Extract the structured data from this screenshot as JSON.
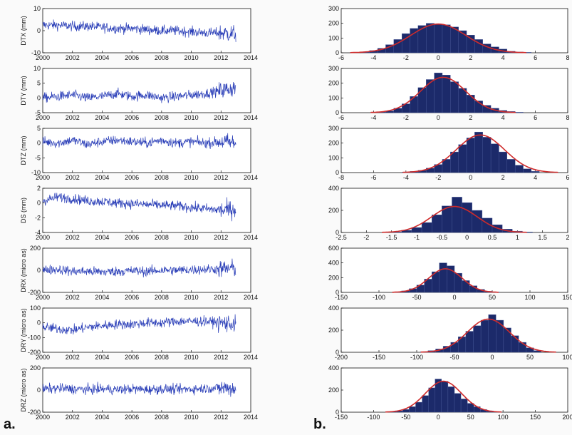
{
  "panel_labels": {
    "a": "a.",
    "b": "b."
  },
  "colors": {
    "series": "#2b3fb8",
    "hist_fill": "#1c2a6a",
    "fit": "#cf2b2b",
    "axis": "#111111",
    "background": "#fafafa"
  },
  "chart_data": [
    {
      "type": "line",
      "ylabel": "DTX (mm)",
      "xlim": [
        2000,
        2014
      ],
      "ylim": [
        -10,
        10
      ],
      "xticks": [
        2000,
        2002,
        2004,
        2006,
        2008,
        2010,
        2012,
        2014
      ],
      "yticks": [
        -10,
        0,
        10
      ],
      "x": [
        2000,
        2001,
        2002,
        2003,
        2004,
        2005,
        2006,
        2007,
        2008,
        2009,
        2010,
        2011,
        2012,
        2013
      ],
      "values": [
        2.5,
        2.5,
        2.0,
        2.0,
        1.5,
        1.0,
        1.0,
        0.5,
        0.0,
        0.0,
        -0.5,
        -1.0,
        -1.0,
        -1.5
      ]
    },
    {
      "type": "line",
      "ylabel": "DTY (mm)",
      "xlim": [
        2000,
        2014
      ],
      "ylim": [
        -5,
        10
      ],
      "xticks": [
        2000,
        2002,
        2004,
        2006,
        2008,
        2010,
        2012,
        2014
      ],
      "yticks": [
        -5,
        0,
        5,
        10
      ],
      "x": [
        2000,
        2001,
        2002,
        2003,
        2004,
        2005,
        2006,
        2007,
        2008,
        2009,
        2010,
        2011,
        2012,
        2013
      ],
      "values": [
        0.0,
        0.5,
        1.0,
        0.0,
        0.5,
        1.5,
        0.5,
        1.0,
        0.0,
        0.5,
        1.0,
        1.5,
        2.5,
        3.5
      ]
    },
    {
      "type": "line",
      "ylabel": "DTZ (mm)",
      "xlim": [
        2000,
        2014
      ],
      "ylim": [
        -10,
        5
      ],
      "xticks": [
        2000,
        2002,
        2004,
        2006,
        2008,
        2010,
        2012,
        2014
      ],
      "yticks": [
        -10,
        -5,
        0,
        5
      ],
      "x": [
        2000,
        2001,
        2002,
        2003,
        2004,
        2005,
        2006,
        2007,
        2008,
        2009,
        2010,
        2011,
        2012,
        2013
      ],
      "values": [
        0.5,
        0.0,
        1.0,
        -0.5,
        0.5,
        1.0,
        0.5,
        0.0,
        1.0,
        0.0,
        0.5,
        0.0,
        0.5,
        0.0
      ]
    },
    {
      "type": "line",
      "ylabel": "DS (mm)",
      "xlim": [
        2000,
        2014
      ],
      "ylim": [
        -4,
        2
      ],
      "xticks": [
        2000,
        2002,
        2004,
        2006,
        2008,
        2010,
        2012,
        2014
      ],
      "yticks": [
        -4,
        -2,
        0,
        2
      ],
      "x": [
        2000,
        2001,
        2002,
        2003,
        2004,
        2005,
        2006,
        2007,
        2008,
        2009,
        2010,
        2011,
        2012,
        2013
      ],
      "values": [
        0.3,
        0.8,
        0.6,
        0.3,
        0.2,
        0.0,
        -0.1,
        -0.2,
        -0.3,
        -0.4,
        -0.6,
        -0.8,
        -1.0,
        -0.8
      ]
    },
    {
      "type": "line",
      "ylabel": "DRX (micro as)",
      "xlim": [
        2000,
        2014
      ],
      "ylim": [
        -200,
        200
      ],
      "xticks": [
        2000,
        2002,
        2004,
        2006,
        2008,
        2010,
        2012,
        2014
      ],
      "yticks": [
        -200,
        0,
        200
      ],
      "x": [
        2000,
        2001,
        2002,
        2003,
        2004,
        2005,
        2006,
        2007,
        2008,
        2009,
        2010,
        2011,
        2012,
        2013
      ],
      "values": [
        0,
        10,
        -10,
        -10,
        -15,
        -10,
        -5,
        -10,
        0,
        0,
        5,
        10,
        10,
        20
      ]
    },
    {
      "type": "line",
      "ylabel": "DRY (micro as)",
      "xlim": [
        2000,
        2014
      ],
      "ylim": [
        -200,
        100
      ],
      "xticks": [
        2000,
        2002,
        2004,
        2006,
        2008,
        2010,
        2012,
        2014
      ],
      "yticks": [
        -200,
        -100,
        0,
        100
      ],
      "x": [
        2000,
        2001,
        2002,
        2003,
        2004,
        2005,
        2006,
        2007,
        2008,
        2009,
        2010,
        2011,
        2012,
        2013
      ],
      "values": [
        -30,
        -40,
        -50,
        -30,
        -20,
        -10,
        -10,
        0,
        0,
        10,
        10,
        10,
        0,
        -10
      ]
    },
    {
      "type": "line",
      "ylabel": "DRZ (micro as)",
      "xlim": [
        2000,
        2014
      ],
      "ylim": [
        -200,
        200
      ],
      "xticks": [
        2000,
        2002,
        2004,
        2006,
        2008,
        2010,
        2012,
        2014
      ],
      "yticks": [
        -200,
        0,
        200
      ],
      "x": [
        2000,
        2001,
        2002,
        2003,
        2004,
        2005,
        2006,
        2007,
        2008,
        2009,
        2010,
        2011,
        2012,
        2013
      ],
      "values": [
        10,
        15,
        10,
        5,
        10,
        5,
        10,
        5,
        10,
        5,
        10,
        15,
        20,
        15
      ]
    },
    {
      "type": "bar",
      "xlim": [
        -6,
        8
      ],
      "ylim": [
        0,
        300
      ],
      "xticks": [
        -6,
        -4,
        -2,
        0,
        2,
        4,
        6,
        8
      ],
      "yticks": [
        0,
        100,
        200,
        300
      ],
      "bin_centers": [
        -4.5,
        -4,
        -3.5,
        -3,
        -2.5,
        -2,
        -1.5,
        -1,
        -0.5,
        0,
        0.5,
        1,
        1.5,
        2,
        2.5,
        3,
        3.5,
        4,
        4.5,
        5,
        5.5
      ],
      "counts": [
        5,
        15,
        30,
        55,
        90,
        130,
        165,
        185,
        200,
        195,
        190,
        175,
        150,
        120,
        90,
        60,
        40,
        25,
        10,
        5,
        3
      ],
      "fit": {
        "mean": 0.0,
        "sd": 1.7,
        "peak": 195
      }
    },
    {
      "type": "bar",
      "xlim": [
        -6,
        8
      ],
      "ylim": [
        0,
        300
      ],
      "xticks": [
        -6,
        -4,
        -2,
        0,
        2,
        4,
        6,
        8
      ],
      "yticks": [
        0,
        100,
        200,
        300
      ],
      "bin_centers": [
        -3.5,
        -3,
        -2.5,
        -2,
        -1.5,
        -1,
        -0.5,
        0,
        0.5,
        1,
        1.5,
        2,
        2.5,
        3,
        3.5,
        4,
        4.5,
        5
      ],
      "counts": [
        5,
        12,
        30,
        60,
        110,
        170,
        225,
        270,
        255,
        210,
        165,
        120,
        80,
        50,
        30,
        15,
        8,
        3
      ],
      "fit": {
        "mean": 0.3,
        "sd": 1.4,
        "peak": 240
      }
    },
    {
      "type": "bar",
      "xlim": [
        -8,
        6
      ],
      "ylim": [
        0,
        300
      ],
      "xticks": [
        -8,
        -6,
        -4,
        -2,
        0,
        2,
        4,
        6
      ],
      "yticks": [
        0,
        100,
        200,
        300
      ],
      "bin_centers": [
        -4,
        -3.5,
        -3,
        -2.5,
        -2,
        -1.5,
        -1,
        -0.5,
        0,
        0.5,
        1,
        1.5,
        2,
        2.5,
        3,
        3.5,
        4
      ],
      "counts": [
        3,
        8,
        15,
        30,
        55,
        90,
        140,
        190,
        235,
        275,
        240,
        195,
        140,
        90,
        50,
        25,
        8
      ],
      "fit": {
        "mean": 0.6,
        "sd": 1.5,
        "peak": 255
      }
    },
    {
      "type": "bar",
      "xlim": [
        -2.5,
        2
      ],
      "ylim": [
        0,
        400
      ],
      "xticks": [
        -2.5,
        -2,
        -1.5,
        -1,
        -0.5,
        0,
        0.5,
        1,
        1.5,
        2
      ],
      "yticks": [
        0,
        200,
        400
      ],
      "bin_centers": [
        -1.4,
        -1.2,
        -1.0,
        -0.8,
        -0.6,
        -0.4,
        -0.2,
        0.0,
        0.2,
        0.4,
        0.6,
        0.8,
        1.0,
        1.2
      ],
      "counts": [
        5,
        20,
        45,
        90,
        160,
        240,
        320,
        270,
        200,
        130,
        70,
        30,
        12,
        5
      ],
      "fit": {
        "mean": -0.25,
        "sd": 0.45,
        "peak": 235
      }
    },
    {
      "type": "bar",
      "xlim": [
        -150,
        150
      ],
      "ylim": [
        0,
        600
      ],
      "xticks": [
        -150,
        -100,
        -50,
        0,
        50,
        100,
        150
      ],
      "yticks": [
        0,
        200,
        400,
        600
      ],
      "bin_centers": [
        -75,
        -65,
        -55,
        -45,
        -35,
        -25,
        -15,
        -5,
        5,
        15,
        25,
        35,
        45,
        55
      ],
      "counts": [
        5,
        20,
        50,
        100,
        180,
        280,
        400,
        360,
        260,
        160,
        90,
        40,
        15,
        5
      ],
      "fit": {
        "mean": -12,
        "sd": 22,
        "peak": 320
      }
    },
    {
      "type": "bar",
      "xlim": [
        -200,
        100
      ],
      "ylim": [
        0,
        400
      ],
      "xticks": [
        -200,
        -150,
        -100,
        -50,
        0,
        50,
        100
      ],
      "yticks": [
        0,
        200,
        400
      ],
      "bin_centers": [
        -90,
        -80,
        -70,
        -60,
        -50,
        -40,
        -30,
        -20,
        -10,
        0,
        10,
        20,
        30,
        40,
        50,
        60
      ],
      "counts": [
        5,
        15,
        30,
        55,
        90,
        140,
        190,
        240,
        290,
        340,
        290,
        220,
        150,
        90,
        40,
        15
      ],
      "fit": {
        "mean": -5,
        "sd": 28,
        "peak": 300
      }
    },
    {
      "type": "bar",
      "xlim": [
        -150,
        200
      ],
      "ylim": [
        0,
        400
      ],
      "xticks": [
        -150,
        -100,
        -50,
        0,
        50,
        100,
        150,
        200
      ],
      "yticks": [
        0,
        200,
        400
      ],
      "bin_centers": [
        -70,
        -60,
        -50,
        -40,
        -30,
        -20,
        -10,
        0,
        10,
        20,
        30,
        40,
        50,
        60,
        70,
        80,
        90
      ],
      "counts": [
        5,
        12,
        25,
        50,
        90,
        150,
        220,
        300,
        280,
        230,
        170,
        120,
        80,
        50,
        25,
        12,
        5
      ],
      "fit": {
        "mean": 8,
        "sd": 28,
        "peak": 280
      }
    }
  ]
}
